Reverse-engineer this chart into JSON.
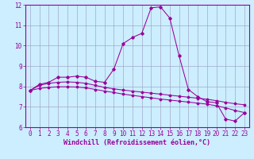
{
  "xlabel": "Windchill (Refroidissement éolien,°C)",
  "x": [
    0,
    1,
    2,
    3,
    4,
    5,
    6,
    7,
    8,
    9,
    10,
    11,
    12,
    13,
    14,
    15,
    16,
    17,
    18,
    19,
    20,
    21,
    22,
    23
  ],
  "line1": [
    7.8,
    8.1,
    8.2,
    8.45,
    8.45,
    8.5,
    8.45,
    8.25,
    8.2,
    8.85,
    10.1,
    10.4,
    10.6,
    11.85,
    11.9,
    11.35,
    9.5,
    7.85,
    7.5,
    7.25,
    7.2,
    6.4,
    6.3,
    6.7
  ],
  "line2": [
    7.8,
    8.05,
    8.15,
    8.2,
    8.22,
    8.2,
    8.15,
    8.05,
    7.95,
    7.88,
    7.82,
    7.77,
    7.72,
    7.67,
    7.62,
    7.57,
    7.52,
    7.47,
    7.42,
    7.37,
    7.3,
    7.22,
    7.15,
    7.1
  ],
  "line3": [
    7.8,
    7.9,
    7.95,
    7.98,
    7.98,
    7.97,
    7.93,
    7.85,
    7.77,
    7.7,
    7.62,
    7.56,
    7.5,
    7.44,
    7.38,
    7.33,
    7.28,
    7.23,
    7.18,
    7.13,
    7.05,
    6.95,
    6.82,
    6.72
  ],
  "color": "#990099",
  "bg_color": "#cceeff",
  "grid_color": "#9999bb",
  "ylim": [
    6,
    12
  ],
  "xlim": [
    -0.5,
    23.5
  ],
  "xticks": [
    0,
    1,
    2,
    3,
    4,
    5,
    6,
    7,
    8,
    9,
    10,
    11,
    12,
    13,
    14,
    15,
    16,
    17,
    18,
    19,
    20,
    21,
    22,
    23
  ],
  "yticks": [
    6,
    7,
    8,
    9,
    10,
    11,
    12
  ],
  "tick_fontsize": 5.5,
  "label_fontsize": 6
}
